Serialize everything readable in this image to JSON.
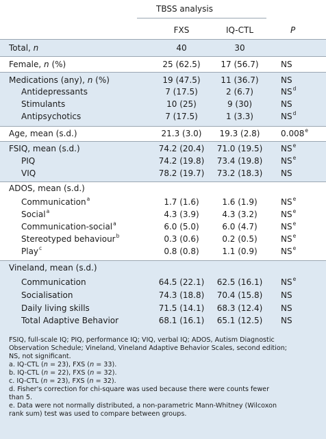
{
  "header": {
    "group": "TBSS analysis",
    "col_fxs": "FXS",
    "col_ctl": "IQ-CTL",
    "col_p": "P"
  },
  "rows": {
    "total": {
      "label": "Total, ",
      "unit": "n",
      "fxs": "40",
      "ctl": "30",
      "p": ""
    },
    "female": {
      "label": "Female, ",
      "unit": "n",
      "suffix": " (%)",
      "fxs": "25 (62.5)",
      "ctl": "17 (56.7)",
      "p": "NS"
    },
    "medications": {
      "label": "Medications (any), ",
      "unit": "n",
      "suffix": " (%)",
      "fxs": "19 (47.5)",
      "ctl": "11 (36.7)",
      "p": "NS"
    },
    "antidep": {
      "label": "Antidepressants",
      "fxs": "7 (17.5)",
      "ctl": "2 (6.7)",
      "p": "NS",
      "sup": "d"
    },
    "stimulants": {
      "label": "Stimulants",
      "fxs": "10 (25)",
      "ctl": "9 (30)",
      "p": "NS"
    },
    "antipsych": {
      "label": "Antipsychotics",
      "fxs": "7 (17.5)",
      "ctl": "1 (3.3)",
      "p": "NS",
      "sup": "d"
    },
    "age": {
      "label": "Age, mean (s.d.)",
      "fxs": "21.3 (3.0)",
      "ctl": "19.3 (2.8)",
      "p": "0.008",
      "sup": "e"
    },
    "fsiq": {
      "label": "FSIQ, mean (s.d.)",
      "fxs": "74.2 (20.4)",
      "ctl": "71.0 (19.5)",
      "p": "NS",
      "sup": "e"
    },
    "piq": {
      "label": "PIQ",
      "fxs": "74.2 (19.8)",
      "ctl": "73.4 (19.8)",
      "p": "NS",
      "sup": "e"
    },
    "viq": {
      "label": "VIQ",
      "fxs": "78.2 (19.7)",
      "ctl": "73.2 (18.3)",
      "p": "NS"
    },
    "ados": {
      "label": "ADOS, mean (s.d.)"
    },
    "comm": {
      "label": "Communication",
      "lsup": "a",
      "fxs": "1.7 (1.6)",
      "ctl": "1.6 (1.9)",
      "p": "NS",
      "sup": "e"
    },
    "social": {
      "label": "Social",
      "lsup": "a",
      "fxs": "4.3 (3.9)",
      "ctl": "4.3 (3.2)",
      "p": "NS",
      "sup": "e"
    },
    "commsoc": {
      "label": "Communication-social",
      "lsup": "a",
      "fxs": "6.0 (5.0)",
      "ctl": "6.0 (4.7)",
      "p": "NS",
      "sup": "e"
    },
    "stereo": {
      "label": "Stereotyped behaviour",
      "lsup": "b",
      "fxs": "0.3 (0.6)",
      "ctl": "0.2 (0.5)",
      "p": "NS",
      "sup": "e"
    },
    "play": {
      "label": "Play",
      "lsup": "c",
      "fxs": "0.8 (0.8)",
      "ctl": "1.1 (0.9)",
      "p": "NS",
      "sup": "e"
    },
    "vineland": {
      "label": "Vineland, mean (s.d.)"
    },
    "vcomm": {
      "label": "Communication",
      "fxs": "64.5 (22.1)",
      "ctl": "62.5 (16.1)",
      "p": "NS",
      "sup": "e"
    },
    "vsoc": {
      "label": "Socialisation",
      "fxs": "74.3 (18.8)",
      "ctl": "70.4 (15.8)",
      "p": "NS"
    },
    "vdaily": {
      "label": "Daily living skills",
      "fxs": "71.5 (14.1)",
      "ctl": "68.3 (12.4)",
      "p": "NS"
    },
    "vtotal": {
      "label": "Total Adaptive Behavior",
      "fxs": "68.1 (16.1)",
      "ctl": "65.1 (12.5)",
      "p": "NS"
    }
  },
  "footnotes": {
    "abbrev_1": "FSIQ, full-scale IQ; PIQ, performance IQ; VIQ, verbal IQ; ADOS, Autism Diagnostic",
    "abbrev_2": "Observation Schedule; Vineland, Vineland Adaptive Behavior Scales, second edition;",
    "abbrev_3": "NS, not significant.",
    "a_pre": "a. IQ-CTL (",
    "a_n1": "n",
    "a_mid": " = 23), FXS (",
    "a_n2": "n",
    "a_post": " = 33).",
    "b_pre": "b. IQ-CTL (",
    "b_n1": "n",
    "b_mid": " = 22), FXS (",
    "b_n2": "n",
    "b_post": " = 32).",
    "c_pre": "c. IQ-CTL (",
    "c_n1": "n",
    "c_mid": " = 23), FXS (",
    "c_n2": "n",
    "c_post": " = 32).",
    "d_1": "d. Fisher's correction for chi-square was used because there were counts fewer",
    "d_2": "than 5.",
    "e_1": "e. Data were not normally distributed, a non-parametric Mann-Whitney (Wilcoxon",
    "e_2": "rank sum) test was used to compare between groups."
  },
  "colors": {
    "tint": "#dde8f2",
    "rule": "#9aa6b2",
    "text": "#1a1a1a"
  }
}
